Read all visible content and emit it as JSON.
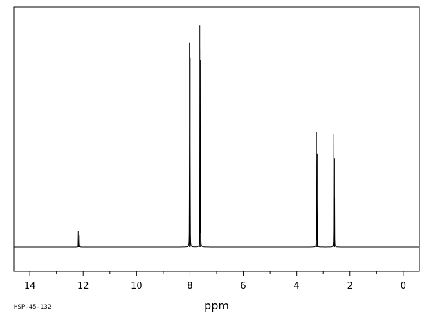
{
  "chart_data": {
    "type": "line",
    "title": "",
    "xlabel": "ppm",
    "ylabel": "",
    "xlim": [
      14.6,
      -0.6
    ],
    "ylim": [
      -0.11,
      1.09
    ],
    "x_reversed": true,
    "grid": false,
    "ticks_major": [
      14,
      12,
      10,
      8,
      6,
      4,
      2,
      0
    ],
    "ticks_minor": [
      13,
      11,
      9,
      7,
      5,
      3,
      1
    ],
    "tick_labels": [
      "14",
      "12",
      "10",
      "8",
      "6",
      "4",
      "2",
      "0"
    ],
    "sample_id": "HSP-45-132",
    "baseline": 0,
    "series": [
      {
        "peaks": [
          {
            "ppm": 12.18,
            "intensity": 0.075
          },
          {
            "ppm": 12.13,
            "intensity": 0.055
          },
          {
            "ppm": 8.02,
            "intensity": 0.92
          },
          {
            "ppm": 7.99,
            "intensity": 0.85
          },
          {
            "ppm": 7.63,
            "intensity": 1.0
          },
          {
            "ppm": 7.6,
            "intensity": 0.84
          },
          {
            "ppm": 3.26,
            "intensity": 0.52
          },
          {
            "ppm": 3.23,
            "intensity": 0.42
          },
          {
            "ppm": 2.61,
            "intensity": 0.51
          },
          {
            "ppm": 2.58,
            "intensity": 0.4
          }
        ]
      }
    ]
  }
}
